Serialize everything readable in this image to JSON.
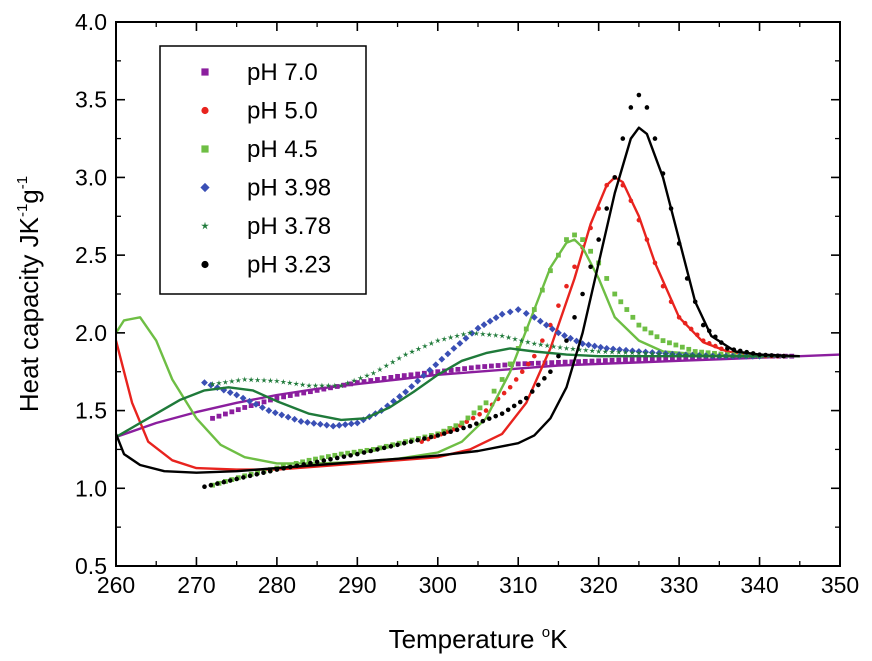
{
  "chart_data": {
    "type": "line",
    "title": "",
    "xlabel": {
      "text": "Temperature ",
      "sup": "o",
      "unit": "K"
    },
    "ylabel": {
      "main": "Heat capacity JK",
      "sup1": "-1",
      "mid": "g",
      "sup2": "-1"
    },
    "xlim": [
      260,
      350
    ],
    "ylim": [
      0.5,
      4.0
    ],
    "xticks": [
      "260",
      "270",
      "280",
      "290",
      "300",
      "310",
      "320",
      "330",
      "340",
      "350"
    ],
    "yticks": [
      "0.5",
      "1.0",
      "1.5",
      "2.0",
      "2.5",
      "3.0",
      "3.5",
      "4.0"
    ],
    "legend_position": "top-left",
    "series": [
      {
        "name": "pH 7.0",
        "color": "#8B1E9E",
        "marker": "square",
        "points": [
          [
            272,
            1.45
          ],
          [
            276,
            1.52
          ],
          [
            280,
            1.58
          ],
          [
            285,
            1.63
          ],
          [
            290,
            1.68
          ],
          [
            295,
            1.72
          ],
          [
            300,
            1.75
          ],
          [
            305,
            1.78
          ],
          [
            310,
            1.8
          ],
          [
            315,
            1.81
          ],
          [
            320,
            1.82
          ],
          [
            325,
            1.83
          ],
          [
            330,
            1.84
          ],
          [
            335,
            1.84
          ],
          [
            340,
            1.85
          ],
          [
            344,
            1.85
          ]
        ],
        "fit": [
          [
            260,
            1.33
          ],
          [
            265,
            1.42
          ],
          [
            270,
            1.49
          ],
          [
            275,
            1.55
          ],
          [
            280,
            1.6
          ],
          [
            285,
            1.64
          ],
          [
            290,
            1.67
          ],
          [
            295,
            1.7
          ],
          [
            300,
            1.73
          ],
          [
            305,
            1.75
          ],
          [
            310,
            1.77
          ],
          [
            315,
            1.79
          ],
          [
            320,
            1.8
          ],
          [
            325,
            1.81
          ],
          [
            330,
            1.82
          ],
          [
            335,
            1.83
          ],
          [
            340,
            1.84
          ],
          [
            345,
            1.85
          ],
          [
            350,
            1.86
          ]
        ]
      },
      {
        "name": "pH 5.0",
        "color": "#E8231E",
        "marker": "circle",
        "points": [
          [
            298,
            1.3
          ],
          [
            302,
            1.38
          ],
          [
            306,
            1.5
          ],
          [
            309,
            1.65
          ],
          [
            312,
            1.85
          ],
          [
            314,
            2.05
          ],
          [
            316,
            2.3
          ],
          [
            318,
            2.55
          ],
          [
            320,
            2.8
          ],
          [
            321,
            2.95
          ],
          [
            322,
            3.0
          ],
          [
            323,
            2.95
          ],
          [
            324,
            2.85
          ],
          [
            326,
            2.6
          ],
          [
            328,
            2.3
          ],
          [
            330,
            2.1
          ],
          [
            333,
            1.95
          ],
          [
            336,
            1.88
          ],
          [
            340,
            1.85
          ],
          [
            343,
            1.85
          ]
        ],
        "fit": [
          [
            260,
            1.95
          ],
          [
            262,
            1.55
          ],
          [
            264,
            1.3
          ],
          [
            267,
            1.18
          ],
          [
            270,
            1.13
          ],
          [
            275,
            1.12
          ],
          [
            280,
            1.12
          ],
          [
            285,
            1.14
          ],
          [
            290,
            1.16
          ],
          [
            295,
            1.18
          ],
          [
            300,
            1.2
          ],
          [
            304,
            1.25
          ],
          [
            308,
            1.35
          ],
          [
            311,
            1.55
          ],
          [
            314,
            1.9
          ],
          [
            317,
            2.35
          ],
          [
            319,
            2.7
          ],
          [
            321,
            2.95
          ],
          [
            322,
            3.0
          ],
          [
            323,
            2.97
          ],
          [
            325,
            2.75
          ],
          [
            327,
            2.45
          ],
          [
            330,
            2.1
          ],
          [
            333,
            1.94
          ],
          [
            336,
            1.88
          ],
          [
            340,
            1.85
          ],
          [
            345,
            1.85
          ]
        ]
      },
      {
        "name": "pH 4.5",
        "color": "#6EBE44",
        "marker": "square",
        "points": [
          [
            272,
            1.02
          ],
          [
            276,
            1.08
          ],
          [
            280,
            1.13
          ],
          [
            284,
            1.18
          ],
          [
            288,
            1.22
          ],
          [
            292,
            1.25
          ],
          [
            296,
            1.3
          ],
          [
            300,
            1.35
          ],
          [
            303,
            1.42
          ],
          [
            306,
            1.55
          ],
          [
            308,
            1.7
          ],
          [
            310,
            1.9
          ],
          [
            312,
            2.15
          ],
          [
            314,
            2.4
          ],
          [
            316,
            2.6
          ],
          [
            317,
            2.63
          ],
          [
            318,
            2.6
          ],
          [
            320,
            2.45
          ],
          [
            322,
            2.25
          ],
          [
            325,
            2.05
          ],
          [
            328,
            1.95
          ],
          [
            332,
            1.88
          ],
          [
            336,
            1.86
          ],
          [
            340,
            1.85
          ]
        ],
        "fit": [
          [
            260,
            2.0
          ],
          [
            261,
            2.08
          ],
          [
            263,
            2.1
          ],
          [
            265,
            1.95
          ],
          [
            267,
            1.7
          ],
          [
            270,
            1.45
          ],
          [
            273,
            1.28
          ],
          [
            276,
            1.2
          ],
          [
            280,
            1.16
          ],
          [
            285,
            1.16
          ],
          [
            290,
            1.17
          ],
          [
            295,
            1.19
          ],
          [
            300,
            1.23
          ],
          [
            303,
            1.3
          ],
          [
            306,
            1.45
          ],
          [
            309,
            1.75
          ],
          [
            312,
            2.15
          ],
          [
            314,
            2.42
          ],
          [
            316,
            2.58
          ],
          [
            317,
            2.6
          ],
          [
            318,
            2.55
          ],
          [
            320,
            2.35
          ],
          [
            322,
            2.1
          ],
          [
            325,
            1.95
          ],
          [
            328,
            1.88
          ],
          [
            333,
            1.86
          ],
          [
            340,
            1.85
          ],
          [
            345,
            1.85
          ]
        ]
      },
      {
        "name": "pH 3.98",
        "color": "#3A4FB5",
        "marker": "diamond",
        "points": [
          [
            271,
            1.68
          ],
          [
            275,
            1.6
          ],
          [
            279,
            1.5
          ],
          [
            283,
            1.43
          ],
          [
            287,
            1.4
          ],
          [
            290,
            1.42
          ],
          [
            293,
            1.5
          ],
          [
            296,
            1.62
          ],
          [
            299,
            1.76
          ],
          [
            302,
            1.9
          ],
          [
            305,
            2.03
          ],
          [
            308,
            2.12
          ],
          [
            310,
            2.15
          ],
          [
            312,
            2.1
          ],
          [
            315,
            2.0
          ],
          [
            318,
            1.93
          ],
          [
            321,
            1.9
          ],
          [
            325,
            1.88
          ],
          [
            330,
            1.86
          ],
          [
            335,
            1.85
          ],
          [
            340,
            1.85
          ]
        ]
      },
      {
        "name": "pH 3.78",
        "color": "#1F7A3A",
        "marker": "star",
        "points": [
          [
            272,
            1.67
          ],
          [
            276,
            1.7
          ],
          [
            280,
            1.69
          ],
          [
            284,
            1.66
          ],
          [
            288,
            1.66
          ],
          [
            292,
            1.74
          ],
          [
            296,
            1.86
          ],
          [
            300,
            1.95
          ],
          [
            304,
            2.0
          ],
          [
            308,
            1.98
          ],
          [
            312,
            1.93
          ],
          [
            316,
            1.9
          ],
          [
            320,
            1.88
          ],
          [
            325,
            1.87
          ],
          [
            330,
            1.86
          ],
          [
            335,
            1.85
          ],
          [
            340,
            1.85
          ]
        ],
        "fit": [
          [
            260,
            1.33
          ],
          [
            264,
            1.45
          ],
          [
            268,
            1.57
          ],
          [
            271,
            1.63
          ],
          [
            274,
            1.65
          ],
          [
            277,
            1.63
          ],
          [
            280,
            1.56
          ],
          [
            284,
            1.48
          ],
          [
            288,
            1.44
          ],
          [
            291,
            1.45
          ],
          [
            294,
            1.52
          ],
          [
            297,
            1.62
          ],
          [
            300,
            1.73
          ],
          [
            303,
            1.82
          ],
          [
            306,
            1.87
          ],
          [
            309,
            1.9
          ],
          [
            312,
            1.88
          ],
          [
            316,
            1.86
          ],
          [
            320,
            1.85
          ],
          [
            330,
            1.85
          ],
          [
            340,
            1.85
          ],
          [
            345,
            1.85
          ]
        ]
      },
      {
        "name": "pH 3.23",
        "color": "#000000",
        "marker": "circle",
        "points": [
          [
            271,
            1.01
          ],
          [
            275,
            1.06
          ],
          [
            280,
            1.12
          ],
          [
            285,
            1.17
          ],
          [
            290,
            1.22
          ],
          [
            295,
            1.28
          ],
          [
            300,
            1.34
          ],
          [
            304,
            1.4
          ],
          [
            308,
            1.48
          ],
          [
            311,
            1.58
          ],
          [
            314,
            1.75
          ],
          [
            316,
            1.95
          ],
          [
            318,
            2.25
          ],
          [
            320,
            2.6
          ],
          [
            322,
            3.0
          ],
          [
            323,
            3.25
          ],
          [
            324,
            3.45
          ],
          [
            325,
            3.53
          ],
          [
            326,
            3.45
          ],
          [
            327,
            3.25
          ],
          [
            329,
            2.8
          ],
          [
            331,
            2.35
          ],
          [
            333,
            2.05
          ],
          [
            336,
            1.9
          ],
          [
            340,
            1.86
          ],
          [
            343,
            1.85
          ]
        ],
        "fit": [
          [
            260,
            1.35
          ],
          [
            261,
            1.22
          ],
          [
            263,
            1.15
          ],
          [
            266,
            1.11
          ],
          [
            270,
            1.1
          ],
          [
            275,
            1.11
          ],
          [
            280,
            1.13
          ],
          [
            285,
            1.15
          ],
          [
            290,
            1.17
          ],
          [
            295,
            1.19
          ],
          [
            300,
            1.21
          ],
          [
            305,
            1.24
          ],
          [
            310,
            1.29
          ],
          [
            312,
            1.34
          ],
          [
            314,
            1.45
          ],
          [
            316,
            1.65
          ],
          [
            318,
            2.0
          ],
          [
            320,
            2.45
          ],
          [
            322,
            2.9
          ],
          [
            324,
            3.25
          ],
          [
            325,
            3.32
          ],
          [
            326,
            3.28
          ],
          [
            328,
            3.0
          ],
          [
            330,
            2.6
          ],
          [
            332,
            2.2
          ],
          [
            334,
            1.98
          ],
          [
            337,
            1.88
          ],
          [
            340,
            1.86
          ],
          [
            345,
            1.85
          ]
        ]
      }
    ]
  }
}
